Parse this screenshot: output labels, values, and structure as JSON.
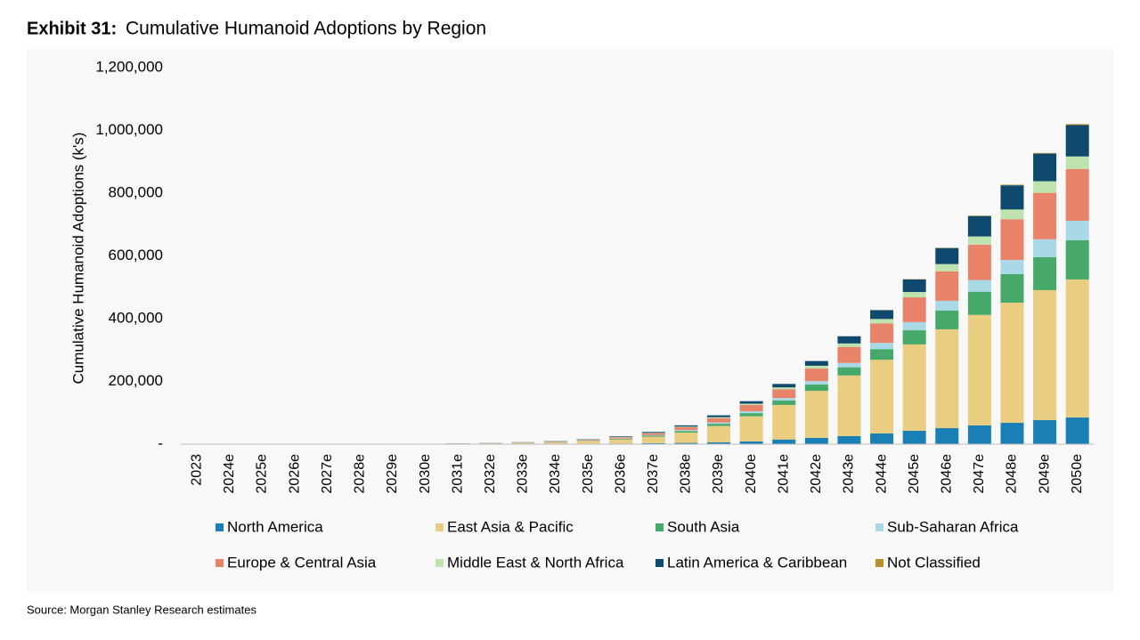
{
  "chart_data": {
    "type": "stacked-bar",
    "exhibit": "Exhibit 31:",
    "title": "Cumulative Humanoid Adoptions by Region",
    "ylabel": "Cumulative Humanoid Adoptions (k's)",
    "source": "Source: Morgan Stanley Research estimates",
    "categories": [
      "2023",
      "2024e",
      "2025e",
      "2026e",
      "2027e",
      "2028e",
      "2029e",
      "2030e",
      "2031e",
      "2032e",
      "2033e",
      "2034e",
      "2035e",
      "2036e",
      "2037e",
      "2038e",
      "2039e",
      "2040e",
      "2041e",
      "2042e",
      "2043e",
      "2044e",
      "2045e",
      "2046e",
      "2047e",
      "2048e",
      "2049e",
      "2050e"
    ],
    "ylim": [
      0,
      1200000
    ],
    "yticks": [
      {
        "value": 0,
        "label": "-"
      },
      {
        "value": 200000,
        "label": "200,000"
      },
      {
        "value": 400000,
        "label": "400,000"
      },
      {
        "value": 600000,
        "label": "600,000"
      },
      {
        "value": 800000,
        "label": "800,000"
      },
      {
        "value": 1000000,
        "label": "1,000,000"
      },
      {
        "value": 1200000,
        "label": "1,200,000"
      }
    ],
    "grid": false,
    "series": [
      {
        "name": "North America",
        "color": "#1a7fb5",
        "values": [
          1,
          2,
          5,
          10,
          20,
          50,
          100,
          200,
          300,
          500,
          700,
          1000,
          1500,
          2000,
          3000,
          4000,
          6000,
          9000,
          15000,
          20000,
          26000,
          34000,
          43000,
          51000,
          60000,
          68000,
          77000,
          85000
        ]
      },
      {
        "name": "East Asia & Pacific",
        "color": "#e9cd80",
        "values": [
          2,
          5,
          10,
          30,
          70,
          150,
          300,
          700,
          1200,
          2000,
          3000,
          5000,
          8000,
          13000,
          21000,
          33000,
          52000,
          80000,
          110000,
          150000,
          193000,
          235000,
          275000,
          315000,
          352000,
          383000,
          414000,
          440000
        ]
      },
      {
        "name": "South Asia",
        "color": "#46a96a",
        "values": [
          0,
          1,
          2,
          5,
          10,
          20,
          50,
          100,
          200,
          300,
          500,
          800,
          1200,
          2000,
          3000,
          5000,
          7000,
          10000,
          14000,
          20000,
          26000,
          34000,
          45000,
          60000,
          74000,
          91000,
          105000,
          125000
        ]
      },
      {
        "name": "Sub-Saharan Africa",
        "color": "#a9d8e6",
        "values": [
          0,
          0,
          1,
          2,
          5,
          10,
          30,
          50,
          100,
          200,
          300,
          400,
          700,
          1000,
          2000,
          3000,
          4000,
          6000,
          8000,
          11000,
          14000,
          20000,
          26000,
          31000,
          37000,
          45000,
          57000,
          62000
        ]
      },
      {
        "name": "Europe & Central Asia",
        "color": "#e8836a",
        "values": [
          1,
          2,
          5,
          10,
          20,
          50,
          100,
          200,
          400,
          600,
          1000,
          1500,
          2500,
          4000,
          6000,
          9000,
          14000,
          20000,
          28000,
          40000,
          51000,
          62000,
          79000,
          94000,
          113000,
          130000,
          148000,
          165000
        ]
      },
      {
        "name": "Middle East & North Africa",
        "color": "#bfe3ae",
        "values": [
          0,
          0,
          1,
          2,
          5,
          10,
          20,
          50,
          100,
          100,
          200,
          300,
          500,
          1000,
          1000,
          2000,
          3000,
          4000,
          6000,
          9000,
          11000,
          14000,
          17000,
          23000,
          26000,
          31000,
          37000,
          40000
        ]
      },
      {
        "name": "Latin America & Caribbean",
        "color": "#0f4a6e",
        "values": [
          0,
          1,
          2,
          5,
          10,
          20,
          50,
          100,
          200,
          300,
          500,
          800,
          1200,
          2000,
          3000,
          4000,
          6000,
          8000,
          11000,
          15000,
          23000,
          28000,
          40000,
          51000,
          65000,
          77000,
          88000,
          100000
        ]
      },
      {
        "name": "Not Classified",
        "color": "#b8902a",
        "values": [
          0,
          0,
          0,
          0,
          0,
          0,
          0,
          0,
          0,
          0,
          0,
          0,
          0,
          0,
          0,
          0,
          0,
          0,
          0,
          0,
          0,
          500,
          1000,
          1000,
          1500,
          2000,
          2000,
          3000
        ]
      }
    ]
  }
}
